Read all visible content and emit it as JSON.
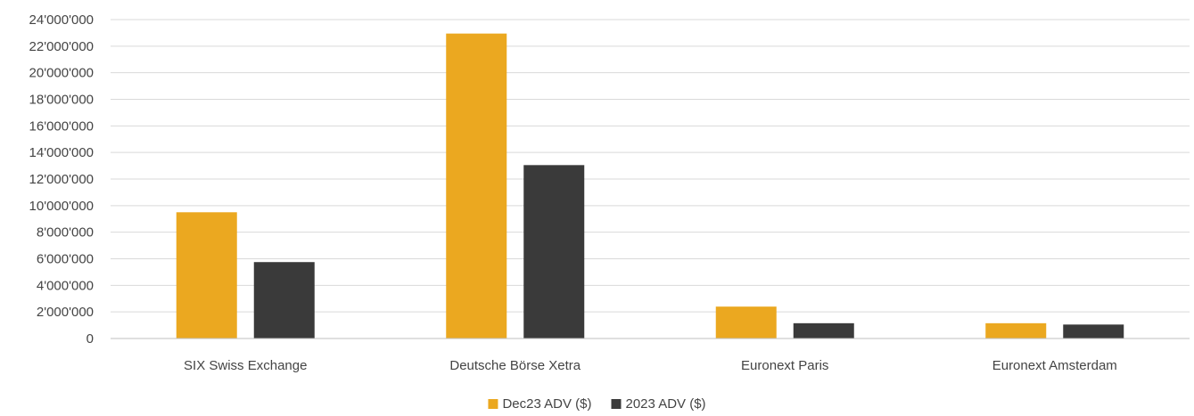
{
  "chart_data": {
    "type": "bar",
    "categories": [
      "SIX Swiss Exchange",
      "Deutsche Börse Xetra",
      "Euronext Paris",
      "Euronext Amsterdam"
    ],
    "series": [
      {
        "name": "Dec23 ADV ($)",
        "color": "#eba820",
        "values": [
          9500000,
          22950000,
          2400000,
          1150000
        ]
      },
      {
        "name": "2023 ADV ($)",
        "color": "#3a3a3a",
        "values": [
          5750000,
          13050000,
          1150000,
          1050000
        ]
      }
    ],
    "yticks": [
      "0",
      "2'000'000",
      "4'000'000",
      "6'000'000",
      "8'000'000",
      "10'000'000",
      "12'000'000",
      "14'000'000",
      "16'000'000",
      "18'000'000",
      "20'000'000",
      "22'000'000",
      "24'000'000"
    ],
    "ylim": [
      0,
      24000000
    ],
    "grid": true,
    "legend_position": "bottom-center"
  }
}
